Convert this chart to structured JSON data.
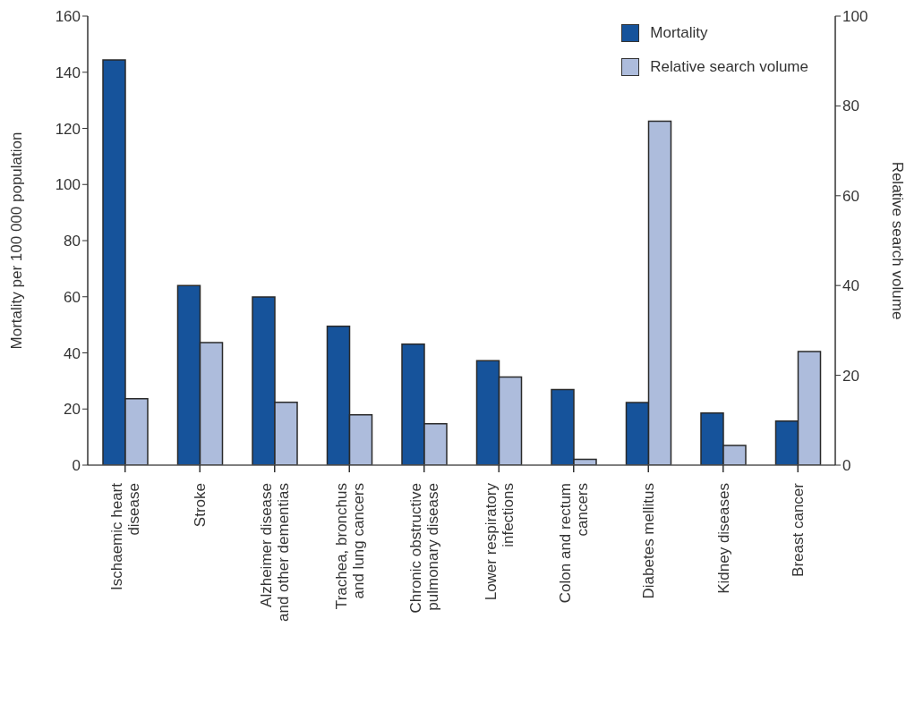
{
  "chart_data": {
    "type": "bar",
    "ylabel": "Mortality per 100 000 population",
    "y2label": "Relative search volume",
    "categories": [
      "Ischaemic heart disease",
      "Stroke",
      "Alzheimer disease and other dementias",
      "Trachea, bronchus and lung cancers",
      "Chronic obstructive pulmonary disease",
      "Lower respiratory infections",
      "Colon and rectum cancers",
      "Diabetes mellitus",
      "Kidney diseases",
      "Breast cancer"
    ],
    "series": [
      {
        "name": "Mortality",
        "color": "#16539b",
        "values": [
          144.4,
          64.0,
          59.9,
          49.5,
          43.1,
          37.2,
          26.9,
          22.3,
          18.6,
          15.7
        ]
      },
      {
        "name": "Relative search volume",
        "color": "#adbcdc",
        "axis": "y2",
        "values": [
          14.8,
          27.3,
          14.0,
          11.2,
          9.2,
          19.6,
          1.3,
          76.6,
          4.4,
          25.3
        ]
      }
    ],
    "ylim": [
      0,
      160
    ],
    "yticks": [
      0,
      20,
      40,
      60,
      80,
      100,
      120,
      140,
      160
    ],
    "y2lim": [
      0,
      100
    ],
    "y2ticks": [
      0,
      20,
      40,
      60,
      80,
      100
    ],
    "legend": "top right",
    "grid": false
  }
}
